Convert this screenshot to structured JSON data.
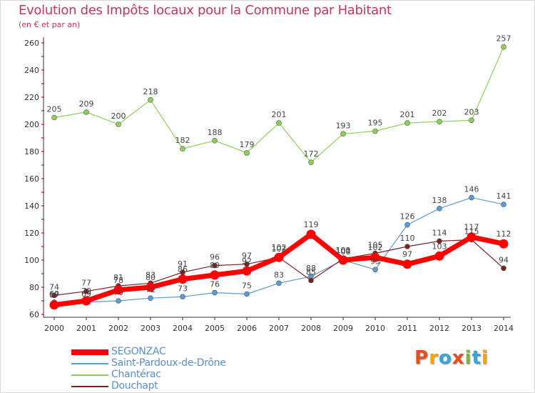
{
  "title": "Evolution des Impôts locaux pour la Commune par Habitant",
  "subtitle": "(en € et par an)",
  "colors": {
    "title": "#c0385c",
    "axis": "#333333",
    "grid_tick": "#c0385c"
  },
  "logo": {
    "text": "Proxiti",
    "letters": [
      "P",
      "r",
      "o",
      "x",
      "i",
      "t",
      "i"
    ],
    "colors": [
      "#e84e1b",
      "#f7a600",
      "#3aa3d8",
      "#e84e1b",
      "#7ab648",
      "#3aa3d8",
      "#f7a600"
    ]
  },
  "chart_data": {
    "type": "line",
    "title": "Evolution des Impôts locaux pour la Commune par Habitant",
    "ylabel": "(en € et par an)",
    "xlabel": "",
    "x": [
      "2000",
      "2001",
      "2002",
      "2003",
      "2004",
      "2005",
      "2006",
      "2007",
      "2008",
      "2009",
      "2010",
      "2011",
      "2012",
      "2013",
      "2014"
    ],
    "ylim": [
      60,
      260
    ],
    "yticks": [
      "60",
      "80",
      "100",
      "120",
      "140",
      "160",
      "180",
      "200",
      "220",
      "240",
      "260"
    ],
    "legend_position": "bottom-left",
    "series": [
      {
        "name": "SEGONZAC",
        "color": "#ff0000",
        "width": 7,
        "marker": 6.5,
        "values": [
          67,
          70,
          78,
          80,
          86,
          89,
          92,
          102,
          119,
          100,
          102,
          97,
          103,
          117,
          112
        ],
        "labels": [
          "67",
          "70",
          "78",
          "80",
          "86",
          "89",
          "92",
          "102",
          "119",
          "100",
          "102",
          "97",
          "103",
          "117",
          "112"
        ]
      },
      {
        "name": "Saint-Pardoux-de-Drône",
        "color": "#5b9bd5",
        "width": 1.2,
        "marker": 3.5,
        "values": [
          69,
          69,
          70,
          72,
          73,
          76,
          75,
          83,
          88,
          100,
          93,
          126,
          138,
          146,
          141
        ],
        "labels": [
          "69",
          "69",
          "70",
          "72",
          "73",
          "76",
          "75",
          "83",
          "88",
          "100",
          "93",
          "126",
          "138",
          "146",
          "141"
        ]
      },
      {
        "name": "Chantérac",
        "color": "#8cd05a",
        "width": 1.2,
        "marker": 3.5,
        "values": [
          205,
          209,
          200,
          218,
          182,
          188,
          179,
          201,
          172,
          193,
          195,
          201,
          202,
          203,
          257
        ],
        "labels": [
          "205",
          "209",
          "200",
          "218",
          "182",
          "188",
          "179",
          "201",
          "172",
          "193",
          "195",
          "201",
          "202",
          "203",
          "257"
        ]
      },
      {
        "name": "Douchapt",
        "color": "#7a2323",
        "width": 1.2,
        "marker": 3.5,
        "values": [
          74,
          77,
          81,
          83,
          91,
          96,
          97,
          102,
          85,
          101,
          105,
          110,
          114,
          115,
          94
        ],
        "labels": [
          "74",
          "77",
          "81",
          "83",
          "91",
          "96",
          "97",
          "102",
          "85",
          "101",
          "105",
          "110",
          "114",
          "115",
          "94"
        ]
      }
    ]
  }
}
